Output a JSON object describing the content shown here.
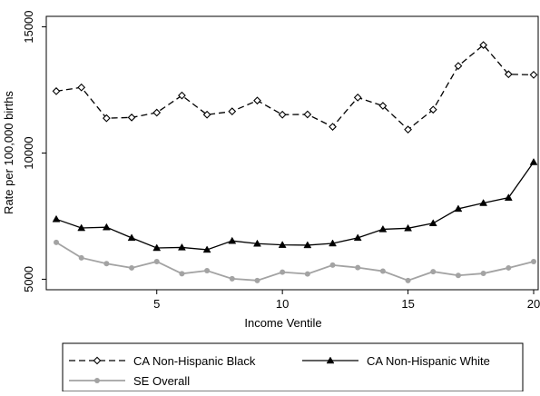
{
  "chart_data": {
    "type": "line",
    "xlabel": "Income Ventile",
    "ylabel": "Rate per 100,000 births",
    "xlim": [
      1,
      20
    ],
    "ylim": [
      5000,
      15000
    ],
    "x_ticks": [
      5,
      10,
      15,
      20
    ],
    "y_ticks": [
      5000,
      10000,
      15000
    ],
    "x": [
      1,
      2,
      3,
      4,
      5,
      6,
      7,
      8,
      9,
      10,
      11,
      12,
      13,
      14,
      15,
      16,
      17,
      18,
      19,
      20
    ],
    "grid": false,
    "legend_position": "bottom",
    "series": [
      {
        "name": "CA Non-Hispanic Black",
        "color": "#000000",
        "line_style": "dashed",
        "marker": "diamond-open",
        "values": [
          12450,
          12600,
          11380,
          11410,
          11600,
          12280,
          11520,
          11650,
          12080,
          11520,
          11530,
          11040,
          12200,
          11870,
          10930,
          11720,
          13450,
          14280,
          13120,
          13100
        ]
      },
      {
        "name": "CA Non-Hispanic White",
        "color": "#000000",
        "line_style": "solid",
        "marker": "triangle-filled",
        "values": [
          7380,
          7030,
          7060,
          6640,
          6240,
          6260,
          6170,
          6520,
          6410,
          6360,
          6350,
          6420,
          6640,
          6980,
          7020,
          7220,
          7790,
          8020,
          8230,
          9640
        ]
      },
      {
        "name": "SE Overall",
        "color": "#a3a3a3",
        "line_style": "solid",
        "marker": "circle-filled",
        "values": [
          6460,
          5850,
          5620,
          5450,
          5700,
          5220,
          5340,
          5020,
          4950,
          5280,
          5210,
          5560,
          5460,
          5320,
          4950,
          5300,
          5150,
          5230,
          5450,
          5700
        ]
      }
    ]
  }
}
